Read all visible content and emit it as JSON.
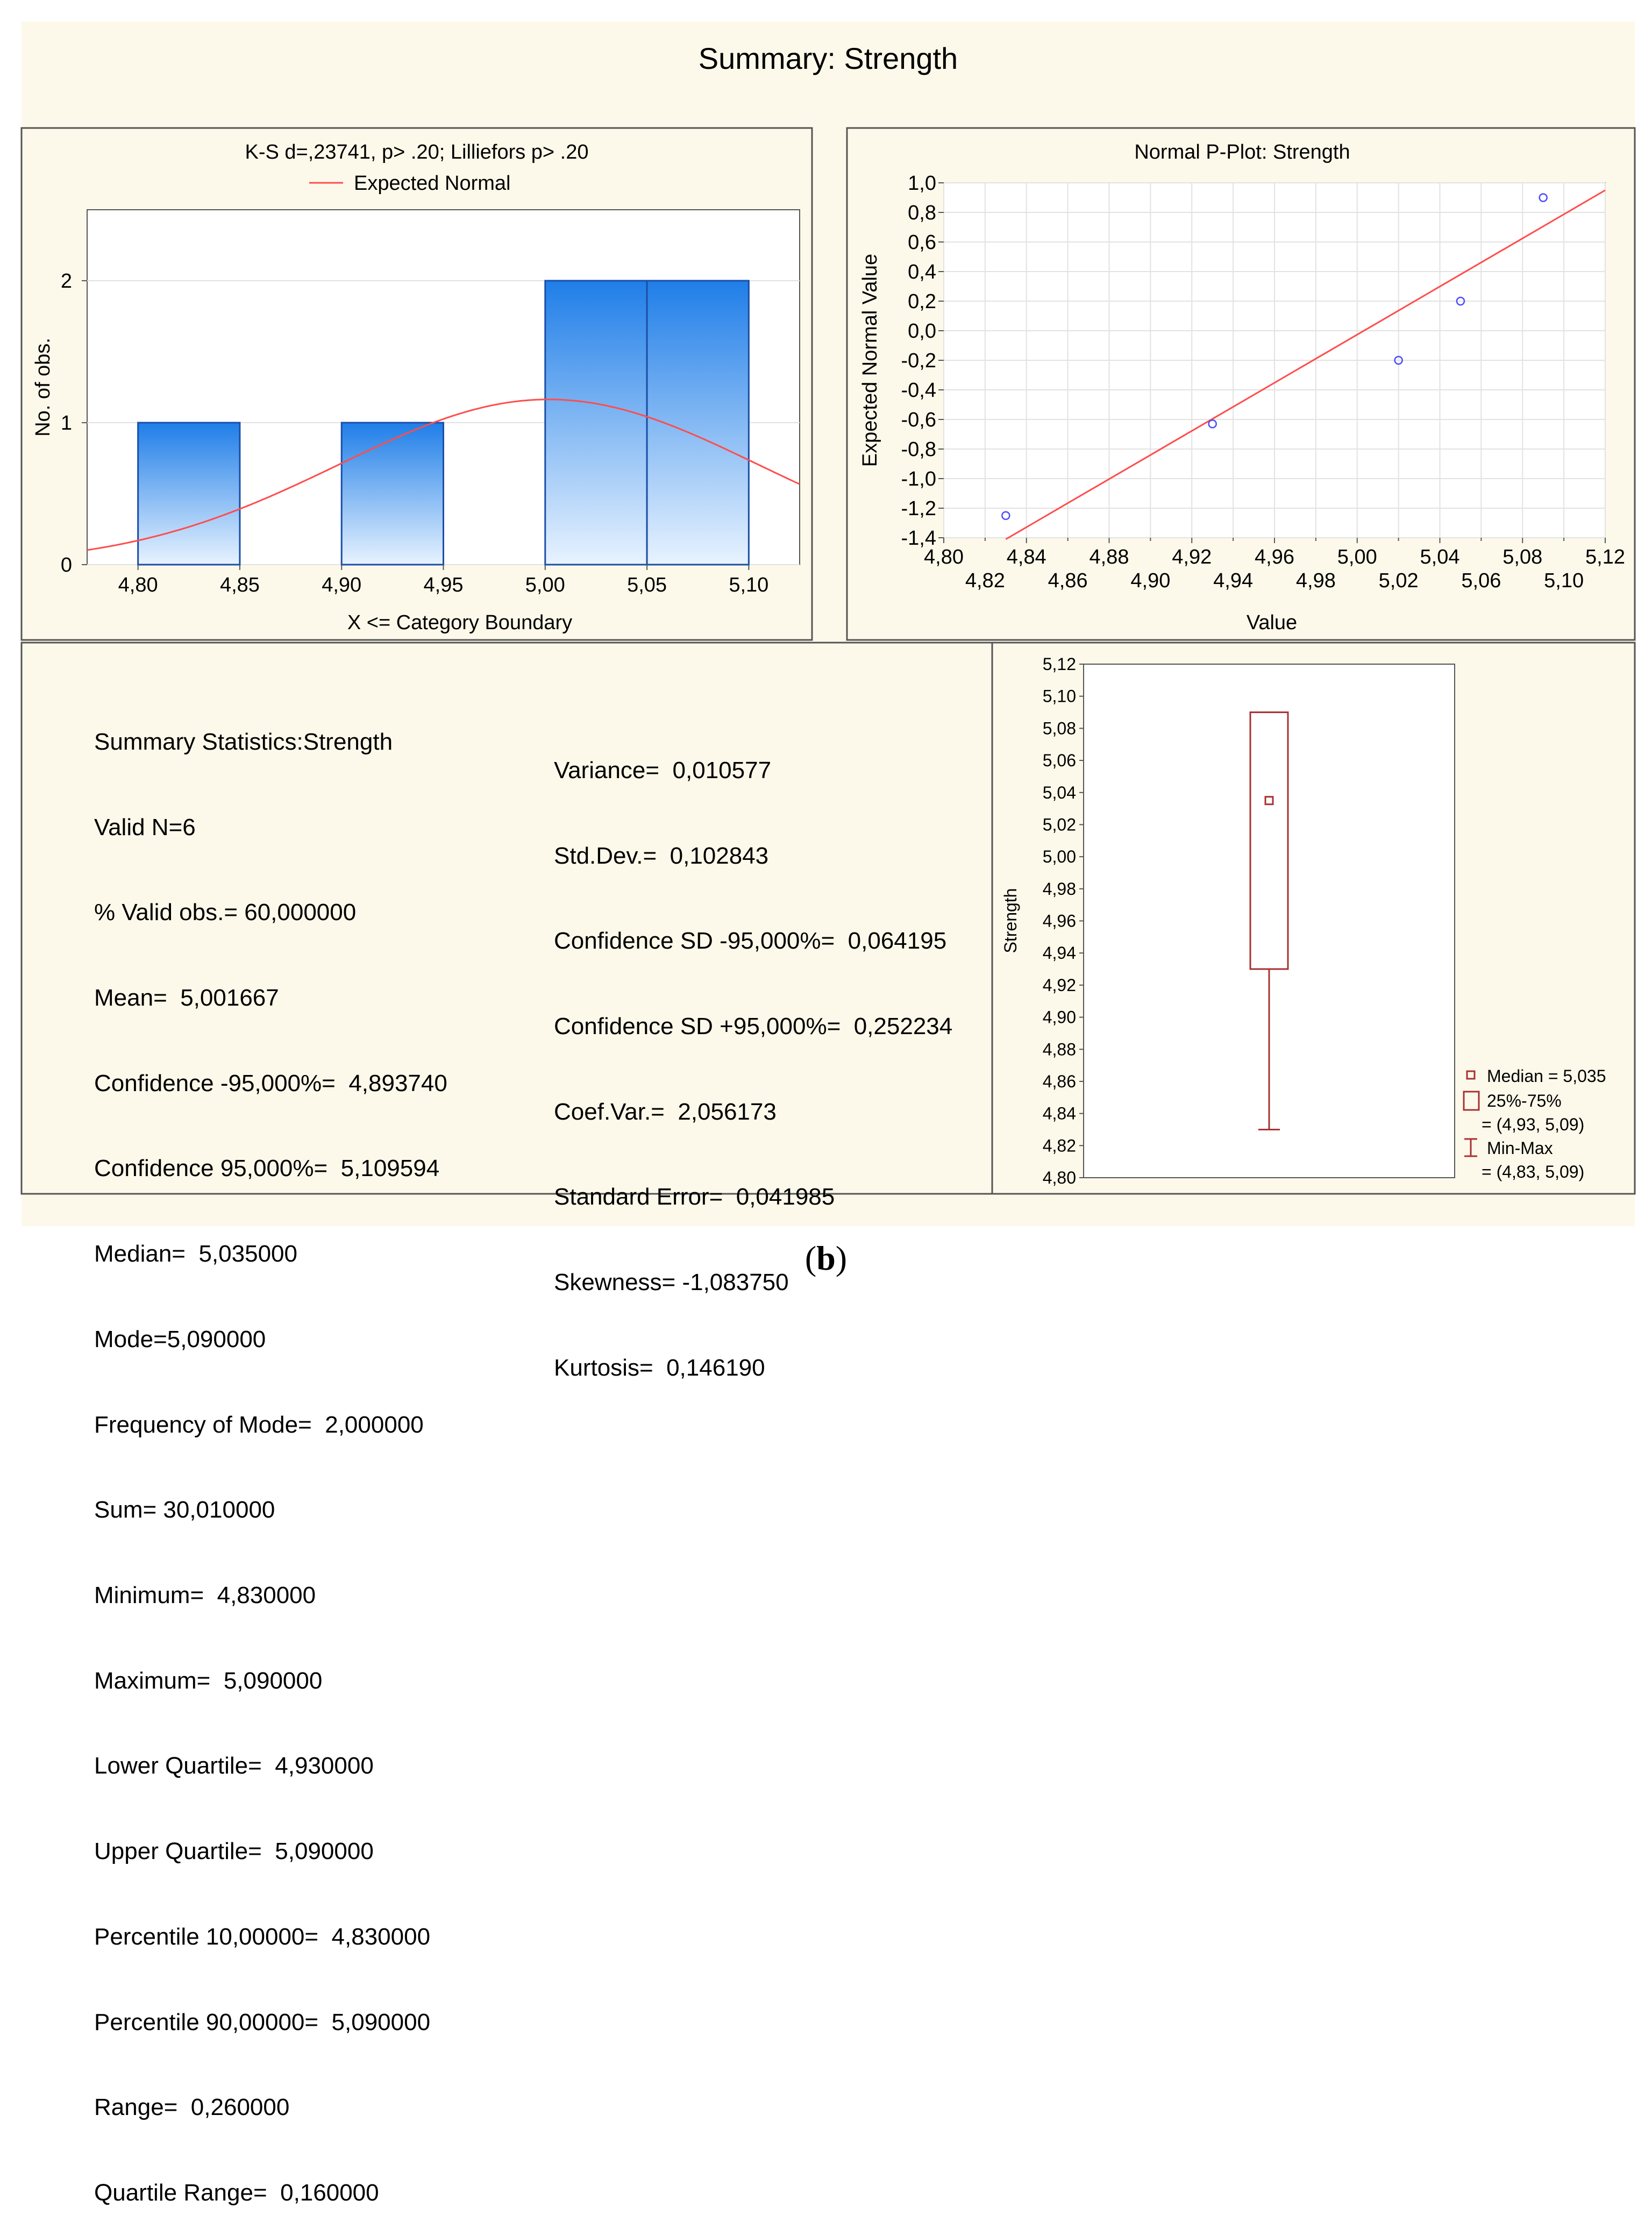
{
  "title": "Summary: Strength",
  "caption": {
    "open": "(",
    "letter": "b",
    "close": ")"
  },
  "colors": {
    "background": "#fdf9ea",
    "bar_top": "#1f7ee8",
    "bar_bottom": "#e8f3ff",
    "normal_curve": "#ff4d4d",
    "point": "#4b4bff",
    "box": "#a83232"
  },
  "chart_data": [
    {
      "type": "bar",
      "title": "K-S d=,23741, p> .20; Lilliefors p> .20",
      "legend": [
        "Expected Normal"
      ],
      "xlabel": "X <= Category Boundary",
      "ylabel": "No. of obs.",
      "categories": [
        "4,80",
        "4,85",
        "4,90",
        "4,95",
        "5,00",
        "5,05",
        "5,10"
      ],
      "bins": [
        {
          "from": 4.8,
          "to": 4.85,
          "value": 1
        },
        {
          "from": 4.9,
          "to": 4.95,
          "value": 1
        },
        {
          "from": 5.0,
          "to": 5.05,
          "value": 2
        },
        {
          "from": 5.05,
          "to": 5.1,
          "value": 2
        }
      ],
      "xlim": [
        4.775,
        5.125
      ],
      "ylim": [
        0,
        2.5
      ],
      "yticks": [
        "0",
        "1",
        "2"
      ],
      "normal": {
        "mean": 5.001667,
        "sd": 0.102843,
        "n": 6,
        "binwidth": 0.05
      }
    },
    {
      "type": "scatter",
      "title": "Normal P-Plot: Strength",
      "xlabel": "Value",
      "ylabel": "Expected Normal Value",
      "xlim": [
        4.8,
        5.12
      ],
      "ylim": [
        -1.4,
        1.0
      ],
      "xticks_top": [
        "4,80",
        "4,84",
        "4,88",
        "4,92",
        "4,96",
        "5,00",
        "5,04",
        "5,08",
        "5,12"
      ],
      "xticks_bottom": [
        "4,82",
        "4,86",
        "4,90",
        "4,94",
        "4,98",
        "5,02",
        "5,06",
        "5,10"
      ],
      "yticks": [
        "1,0",
        "0,8",
        "0,6",
        "0,4",
        "0,2",
        "0,0",
        "-0,2",
        "-0,4",
        "-0,6",
        "-0,8",
        "-1,0",
        "-1,2",
        "-1,4"
      ],
      "points": [
        {
          "x": 4.83,
          "y": -1.25
        },
        {
          "x": 4.93,
          "y": -0.63
        },
        {
          "x": 5.02,
          "y": -0.2
        },
        {
          "x": 5.05,
          "y": 0.2
        },
        {
          "x": 5.09,
          "y": 0.9
        }
      ],
      "fit_line": {
        "x0": 4.83,
        "y0": -1.41,
        "x1": 5.12,
        "y1": 0.95
      }
    },
    {
      "type": "box",
      "ylabel": "Strength",
      "ylim": [
        4.8,
        5.12
      ],
      "yticks": [
        "5,12",
        "5,10",
        "5,08",
        "5,06",
        "5,04",
        "5,02",
        "5,00",
        "4,98",
        "4,96",
        "4,94",
        "4,92",
        "4,90",
        "4,88",
        "4,86",
        "4,84",
        "4,82",
        "4,80"
      ],
      "median": 5.035,
      "q1": 4.93,
      "q3": 5.09,
      "min": 4.83,
      "max": 5.09,
      "legend": {
        "median": "Median = 5,035",
        "box_line1": "25%-75%",
        "box_line2": "= (4,93, 5,09)",
        "range_line1": "Min-Max",
        "range_line2": "= (4,83, 5,09)"
      }
    }
  ],
  "stats": {
    "heading": "Summary Statistics:Strength",
    "left": [
      "Valid N=6",
      "% Valid obs.= 60,000000",
      "Mean=  5,001667",
      "Confidence -95,000%=  4,893740",
      "Confidence 95,000%=  5,109594",
      "Median=  5,035000",
      "Mode=5,090000",
      "Frequency of Mode=  2,000000",
      "Sum= 30,010000",
      "Minimum=  4,830000",
      "Maximum=  5,090000",
      "Lower Quartile=  4,930000",
      "Upper Quartile=  5,090000",
      "Percentile 10,00000=  4,830000",
      "Percentile 90,00000=  5,090000",
      "Range=  0,260000",
      "Quartile Range=  0,160000"
    ],
    "right": [
      "Variance=  0,010577",
      "Std.Dev.=  0,102843",
      "Confidence SD -95,000%=  0,064195",
      "Confidence SD +95,000%=  0,252234",
      "Coef.Var.=  2,056173",
      "Standard Error=  0,041985",
      "Skewness= -1,083750",
      "Kurtosis=  0,146190"
    ]
  }
}
